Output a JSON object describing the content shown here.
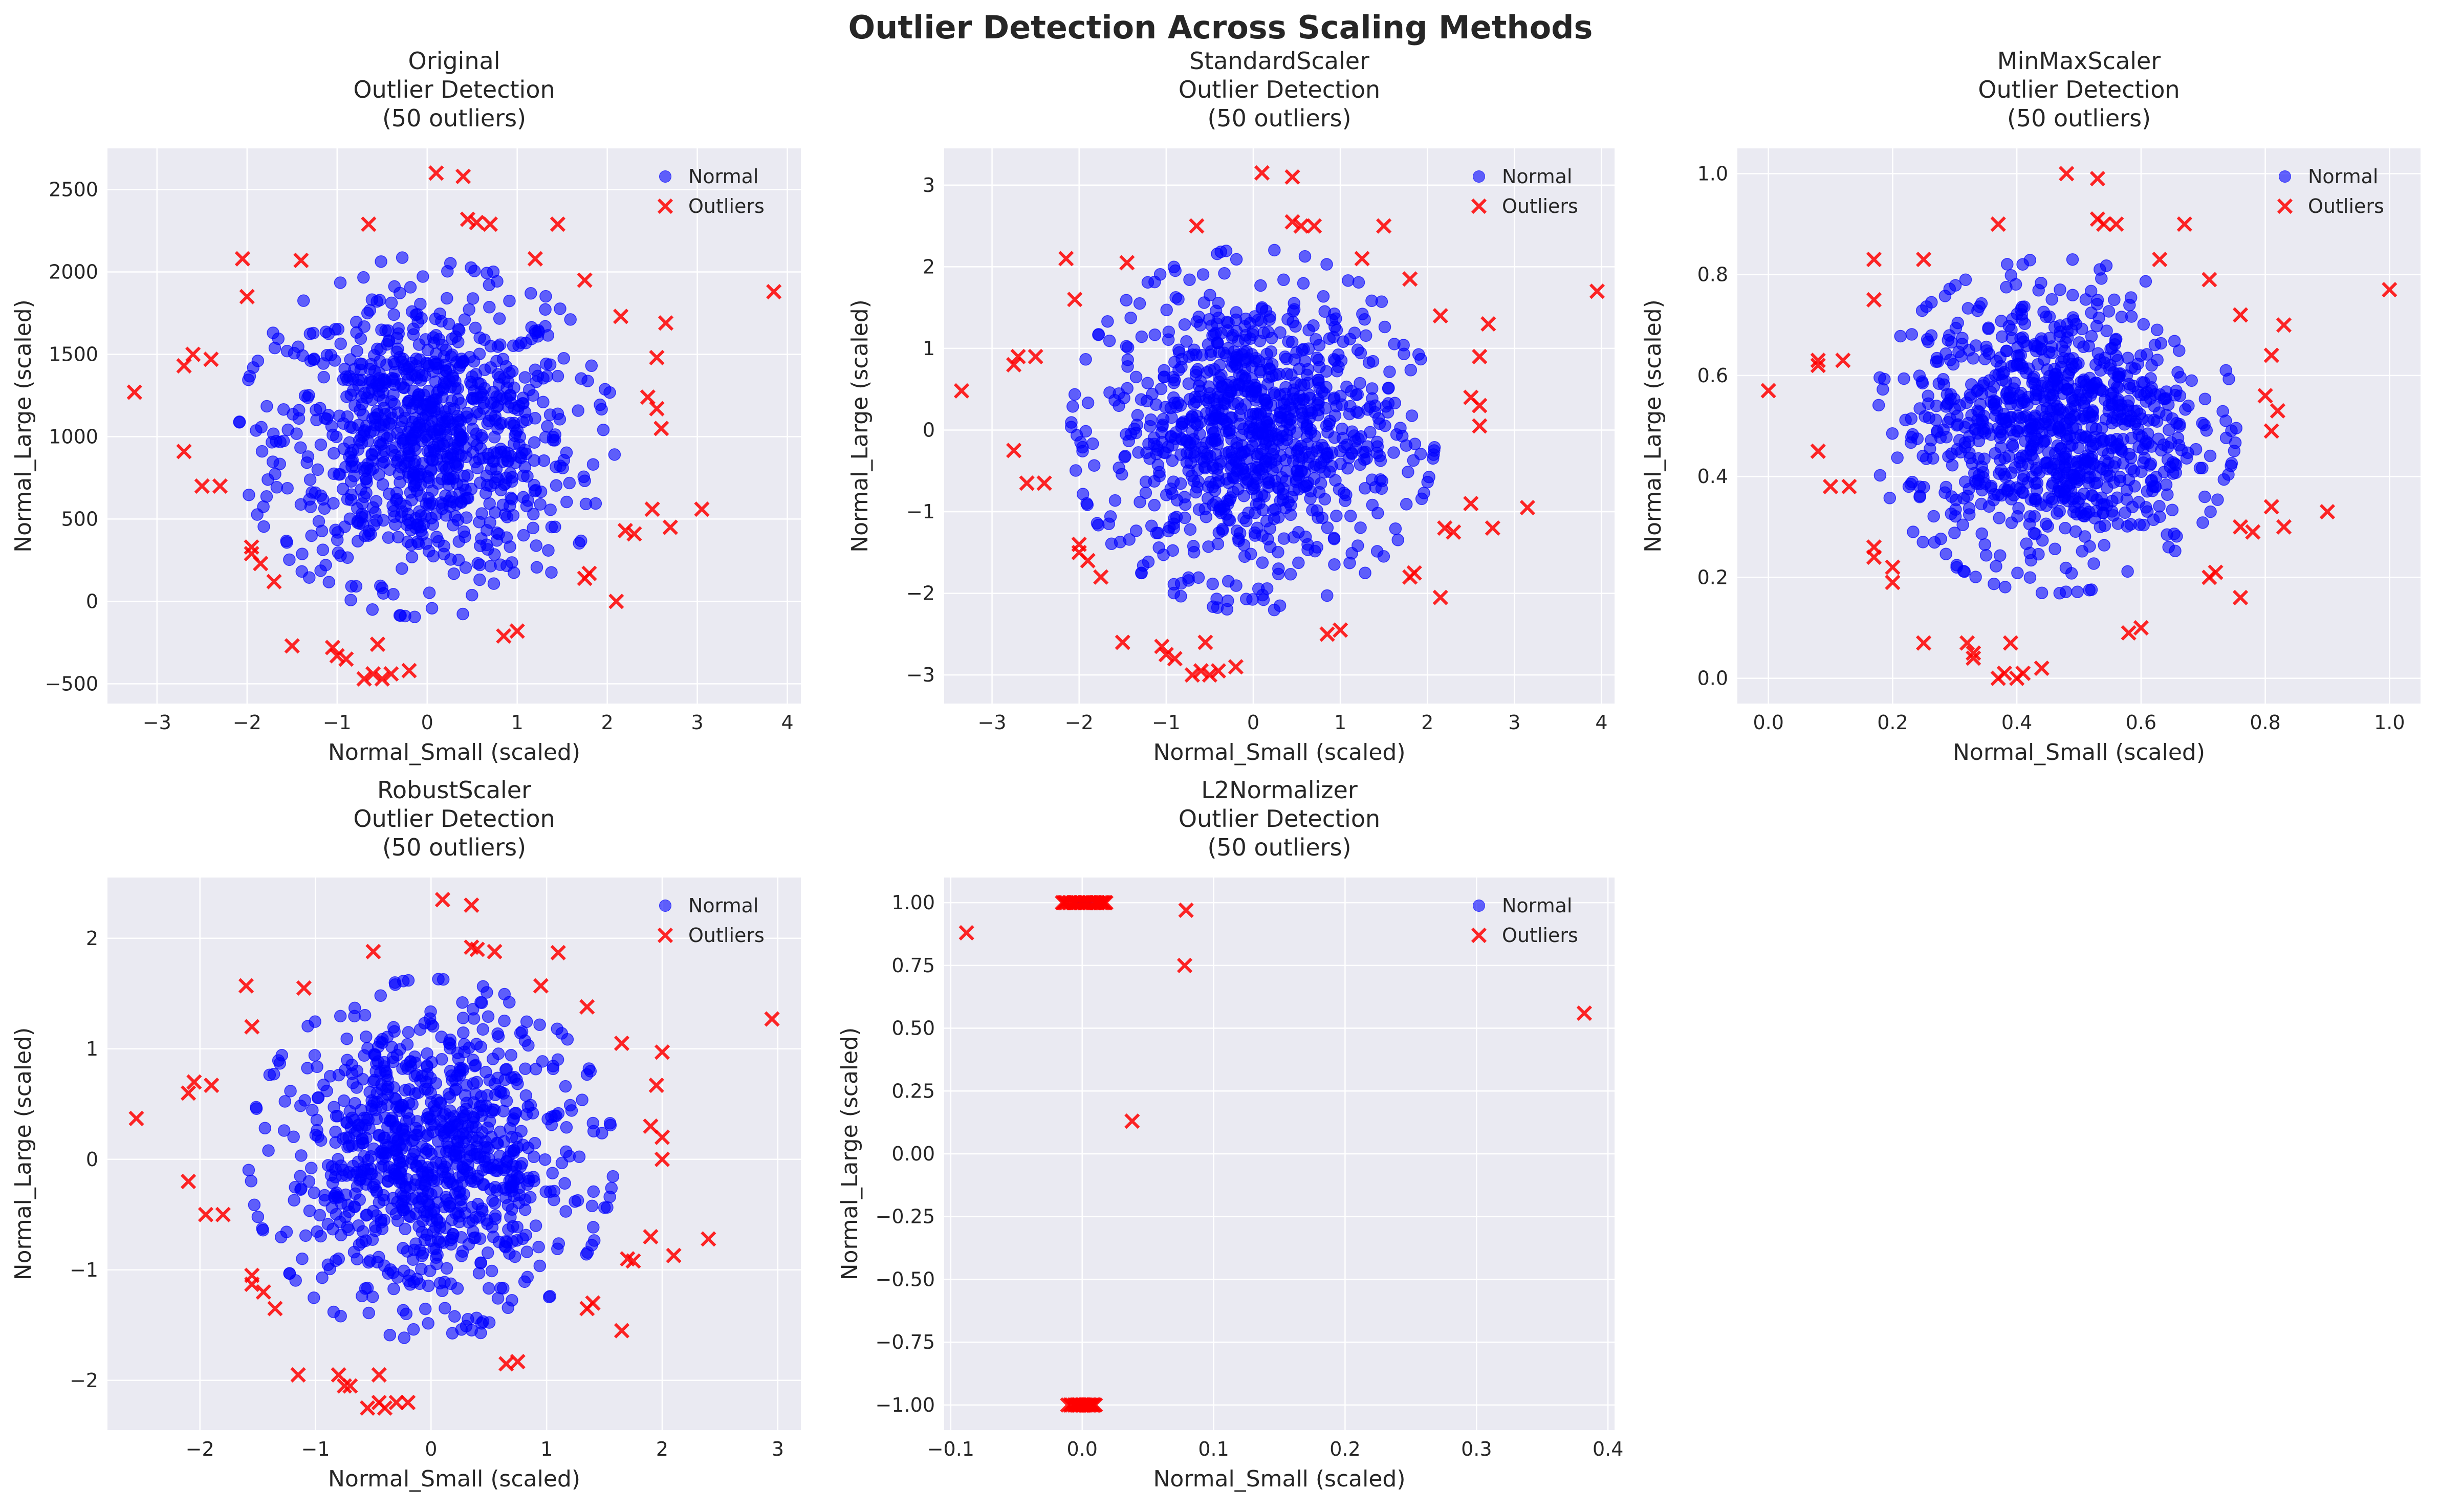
{
  "figure": {
    "title": "Outlier Detection Across Scaling Methods"
  },
  "legend": {
    "normal": "Normal",
    "outliers": "Outliers",
    "placement": "upper-right"
  },
  "colors": {
    "normal": "#0000ff",
    "outlier": "#ff0000",
    "axes_bg": "#eaeaf2",
    "grid": "#ffffff"
  },
  "chart_data": [
    {
      "type": "scatter",
      "title": [
        "Original",
        "Outlier Detection",
        "(50 outliers)"
      ],
      "xlabel": "Normal_Small (scaled)",
      "ylabel": "Normal_Large (scaled)",
      "xlim": [
        -3.55,
        4.15
      ],
      "ylim": [
        -620,
        2750
      ],
      "xticks": [
        -3,
        -2,
        -1,
        0,
        1,
        2,
        3,
        4
      ],
      "yticks": [
        -500,
        0,
        500,
        1000,
        1500,
        2000,
        2500
      ],
      "xtick_labels": [
        "−3",
        "−2",
        "−1",
        "0",
        "1",
        "2",
        "3",
        "4"
      ],
      "ytick_labels": [
        "−500",
        "0",
        "500",
        "1000",
        "1500",
        "2000",
        "2500"
      ],
      "normal": {
        "count": 950,
        "x_mean": 0.0,
        "x_sd": 0.82,
        "y_mean": 1000,
        "y_sd": 430
      },
      "outliers": [
        [
          -3.25,
          1270
        ],
        [
          -2.7,
          1430
        ],
        [
          -2.6,
          1500
        ],
        [
          -2.4,
          1470
        ],
        [
          -2.7,
          910
        ],
        [
          -2.5,
          700
        ],
        [
          -2.3,
          700
        ],
        [
          -2.05,
          2080
        ],
        [
          -2.0,
          1850
        ],
        [
          -1.95,
          330
        ],
        [
          -1.95,
          290
        ],
        [
          -1.85,
          230
        ],
        [
          -1.7,
          120
        ],
        [
          -1.5,
          -270
        ],
        [
          -1.4,
          2070
        ],
        [
          -1.05,
          -280
        ],
        [
          -1.0,
          -330
        ],
        [
          -0.9,
          -350
        ],
        [
          -0.7,
          -470
        ],
        [
          -0.6,
          -440
        ],
        [
          -0.5,
          -470
        ],
        [
          -0.4,
          -440
        ],
        [
          -0.55,
          -260
        ],
        [
          -0.2,
          -420
        ],
        [
          -0.65,
          2290
        ],
        [
          0.1,
          2600
        ],
        [
          0.4,
          2580
        ],
        [
          0.45,
          2320
        ],
        [
          0.55,
          2300
        ],
        [
          0.7,
          2290
        ],
        [
          1.2,
          2080
        ],
        [
          1.45,
          2290
        ],
        [
          1.75,
          1950
        ],
        [
          0.85,
          -210
        ],
        [
          1.0,
          -180
        ],
        [
          1.75,
          140
        ],
        [
          1.8,
          170
        ],
        [
          2.1,
          0
        ],
        [
          2.2,
          430
        ],
        [
          2.3,
          410
        ],
        [
          2.5,
          560
        ],
        [
          2.6,
          1050
        ],
        [
          2.55,
          1170
        ],
        [
          2.55,
          1480
        ],
        [
          2.45,
          1240
        ],
        [
          2.65,
          1690
        ],
        [
          2.15,
          1730
        ],
        [
          2.7,
          450
        ],
        [
          3.05,
          560
        ],
        [
          3.85,
          1880
        ]
      ]
    },
    {
      "type": "scatter",
      "title": [
        "StandardScaler",
        "Outlier Detection",
        "(50 outliers)"
      ],
      "xlabel": "Normal_Small (scaled)",
      "ylabel": "Normal_Large (scaled)",
      "xlim": [
        -3.55,
        4.15
      ],
      "ylim": [
        -3.35,
        3.45
      ],
      "xticks": [
        -3,
        -2,
        -1,
        0,
        1,
        2,
        3,
        4
      ],
      "yticks": [
        -3,
        -2,
        -1,
        0,
        1,
        2,
        3
      ],
      "xtick_labels": [
        "−3",
        "−2",
        "−1",
        "0",
        "1",
        "2",
        "3",
        "4"
      ],
      "ytick_labels": [
        "−3",
        "−2",
        "−1",
        "0",
        "1",
        "2",
        "3"
      ],
      "normal": {
        "count": 950,
        "x_mean": 0.0,
        "x_sd": 0.82,
        "y_mean": 0.0,
        "y_sd": 0.87
      },
      "outliers": [
        [
          -3.35,
          0.48
        ],
        [
          -2.75,
          0.8
        ],
        [
          -2.7,
          0.9
        ],
        [
          -2.5,
          0.9
        ],
        [
          -2.75,
          -0.25
        ],
        [
          -2.6,
          -0.65
        ],
        [
          -2.4,
          -0.65
        ],
        [
          -2.15,
          2.1
        ],
        [
          -2.05,
          1.6
        ],
        [
          -2.0,
          -1.4
        ],
        [
          -2.0,
          -1.5
        ],
        [
          -1.9,
          -1.6
        ],
        [
          -1.75,
          -1.8
        ],
        [
          -1.5,
          -2.6
        ],
        [
          -1.45,
          2.05
        ],
        [
          -1.05,
          -2.65
        ],
        [
          -1.0,
          -2.75
        ],
        [
          -0.9,
          -2.8
        ],
        [
          -0.7,
          -3.0
        ],
        [
          -0.6,
          -2.95
        ],
        [
          -0.5,
          -3.0
        ],
        [
          -0.4,
          -2.95
        ],
        [
          -0.55,
          -2.6
        ],
        [
          -0.2,
          -2.9
        ],
        [
          -0.65,
          2.5
        ],
        [
          0.1,
          3.15
        ],
        [
          0.45,
          3.1
        ],
        [
          0.45,
          2.55
        ],
        [
          0.55,
          2.5
        ],
        [
          0.7,
          2.5
        ],
        [
          1.25,
          2.1
        ],
        [
          1.5,
          2.5
        ],
        [
          1.8,
          1.85
        ],
        [
          0.85,
          -2.5
        ],
        [
          1.0,
          -2.45
        ],
        [
          1.8,
          -1.8
        ],
        [
          1.85,
          -1.75
        ],
        [
          2.15,
          -2.05
        ],
        [
          2.2,
          -1.2
        ],
        [
          2.3,
          -1.25
        ],
        [
          2.5,
          -0.9
        ],
        [
          2.6,
          0.05
        ],
        [
          2.6,
          0.3
        ],
        [
          2.6,
          0.9
        ],
        [
          2.5,
          0.4
        ],
        [
          2.7,
          1.3
        ],
        [
          2.15,
          1.4
        ],
        [
          2.75,
          -1.2
        ],
        [
          3.15,
          -0.95
        ],
        [
          3.95,
          1.7
        ]
      ]
    },
    {
      "type": "scatter",
      "title": [
        "MinMaxScaler",
        "Outlier Detection",
        "(50 outliers)"
      ],
      "xlabel": "Normal_Small (scaled)",
      "ylabel": "Normal_Large (scaled)",
      "xlim": [
        -0.05,
        1.05
      ],
      "ylim": [
        -0.05,
        1.05
      ],
      "xticks": [
        0.0,
        0.2,
        0.4,
        0.6,
        0.8,
        1.0
      ],
      "yticks": [
        0.0,
        0.2,
        0.4,
        0.6,
        0.8,
        1.0
      ],
      "xtick_labels": [
        "0.0",
        "0.2",
        "0.4",
        "0.6",
        "0.8",
        "1.0"
      ],
      "ytick_labels": [
        "0.0",
        "0.2",
        "0.4",
        "0.6",
        "0.8",
        "1.0"
      ],
      "normal": {
        "count": 950,
        "x_mean": 0.46,
        "x_sd": 0.115,
        "y_mean": 0.5,
        "y_sd": 0.13
      },
      "outliers": [
        [
          0.0,
          0.57
        ],
        [
          0.08,
          0.63
        ],
        [
          0.08,
          0.62
        ],
        [
          0.12,
          0.63
        ],
        [
          0.08,
          0.45
        ],
        [
          0.1,
          0.38
        ],
        [
          0.13,
          0.38
        ],
        [
          0.17,
          0.83
        ],
        [
          0.17,
          0.75
        ],
        [
          0.17,
          0.26
        ],
        [
          0.17,
          0.24
        ],
        [
          0.2,
          0.22
        ],
        [
          0.2,
          0.19
        ],
        [
          0.25,
          0.07
        ],
        [
          0.25,
          0.83
        ],
        [
          0.32,
          0.07
        ],
        [
          0.33,
          0.05
        ],
        [
          0.33,
          0.04
        ],
        [
          0.37,
          0.0
        ],
        [
          0.38,
          0.01
        ],
        [
          0.4,
          0.0
        ],
        [
          0.41,
          0.01
        ],
        [
          0.39,
          0.07
        ],
        [
          0.44,
          0.02
        ],
        [
          0.37,
          0.9
        ],
        [
          0.48,
          1.0
        ],
        [
          0.53,
          0.99
        ],
        [
          0.53,
          0.91
        ],
        [
          0.54,
          0.9
        ],
        [
          0.56,
          0.9
        ],
        [
          0.63,
          0.83
        ],
        [
          0.67,
          0.9
        ],
        [
          0.71,
          0.79
        ],
        [
          0.58,
          0.09
        ],
        [
          0.6,
          0.1
        ],
        [
          0.71,
          0.2
        ],
        [
          0.72,
          0.21
        ],
        [
          0.76,
          0.16
        ],
        [
          0.76,
          0.3
        ],
        [
          0.78,
          0.29
        ],
        [
          0.81,
          0.34
        ],
        [
          0.81,
          0.49
        ],
        [
          0.82,
          0.53
        ],
        [
          0.81,
          0.64
        ],
        [
          0.8,
          0.56
        ],
        [
          0.83,
          0.7
        ],
        [
          0.76,
          0.72
        ],
        [
          0.83,
          0.3
        ],
        [
          0.9,
          0.33
        ],
        [
          1.0,
          0.77
        ]
      ]
    },
    {
      "type": "scatter",
      "title": [
        "RobustScaler",
        "Outlier Detection",
        "(50 outliers)"
      ],
      "xlabel": "Normal_Small (scaled)",
      "ylabel": "Normal_Large (scaled)",
      "xlim": [
        -2.8,
        3.2
      ],
      "ylim": [
        -2.45,
        2.55
      ],
      "xticks": [
        -2,
        -1,
        0,
        1,
        2,
        3
      ],
      "yticks": [
        -2,
        -1,
        0,
        1,
        2
      ],
      "xtick_labels": [
        "−2",
        "−1",
        "0",
        "1",
        "2",
        "3"
      ],
      "ytick_labels": [
        "−2",
        "−1",
        "0",
        "1",
        "2"
      ],
      "normal": {
        "count": 950,
        "x_mean": 0.0,
        "x_sd": 0.62,
        "y_mean": 0.0,
        "y_sd": 0.64
      },
      "outliers": [
        [
          -2.55,
          0.37
        ],
        [
          -2.1,
          0.6
        ],
        [
          -2.05,
          0.7
        ],
        [
          -1.9,
          0.67
        ],
        [
          -2.1,
          -0.2
        ],
        [
          -1.95,
          -0.5
        ],
        [
          -1.8,
          -0.5
        ],
        [
          -1.6,
          1.57
        ],
        [
          -1.55,
          1.2
        ],
        [
          -1.55,
          -1.05
        ],
        [
          -1.55,
          -1.13
        ],
        [
          -1.45,
          -1.2
        ],
        [
          -1.35,
          -1.35
        ],
        [
          -1.15,
          -1.95
        ],
        [
          -1.1,
          1.55
        ],
        [
          -0.8,
          -1.95
        ],
        [
          -0.75,
          -2.05
        ],
        [
          -0.7,
          -2.05
        ],
        [
          -0.55,
          -2.25
        ],
        [
          -0.45,
          -2.2
        ],
        [
          -0.4,
          -2.25
        ],
        [
          -0.3,
          -2.2
        ],
        [
          -0.45,
          -1.95
        ],
        [
          -0.2,
          -2.2
        ],
        [
          -0.5,
          1.88
        ],
        [
          0.1,
          2.35
        ],
        [
          0.35,
          2.3
        ],
        [
          0.35,
          1.92
        ],
        [
          0.4,
          1.9
        ],
        [
          0.55,
          1.88
        ],
        [
          0.95,
          1.57
        ],
        [
          1.1,
          1.87
        ],
        [
          1.35,
          1.38
        ],
        [
          0.65,
          -1.85
        ],
        [
          0.75,
          -1.83
        ],
        [
          1.35,
          -1.35
        ],
        [
          1.4,
          -1.3
        ],
        [
          1.65,
          -1.55
        ],
        [
          1.7,
          -0.9
        ],
        [
          1.75,
          -0.92
        ],
        [
          1.9,
          -0.7
        ],
        [
          2.0,
          0.0
        ],
        [
          2.0,
          0.2
        ],
        [
          1.95,
          0.67
        ],
        [
          1.9,
          0.3
        ],
        [
          2.0,
          0.97
        ],
        [
          1.65,
          1.05
        ],
        [
          2.1,
          -0.87
        ],
        [
          2.4,
          -0.72
        ],
        [
          2.95,
          1.27
        ]
      ]
    },
    {
      "type": "scatter",
      "title": [
        "L2Normalizer",
        "Outlier Detection",
        "(50 outliers)"
      ],
      "xlabel": "Normal_Small (scaled)",
      "ylabel": "Normal_Large (scaled)",
      "xlim": [
        -0.105,
        0.405
      ],
      "ylim": [
        -1.1,
        1.1
      ],
      "xticks": [
        -0.1,
        0.0,
        0.1,
        0.2,
        0.3,
        0.4
      ],
      "yticks": [
        -1.0,
        -0.75,
        -0.5,
        -0.25,
        0.0,
        0.25,
        0.5,
        0.75,
        1.0
      ],
      "xtick_labels": [
        "−0.1",
        "0.0",
        "0.1",
        "0.2",
        "0.3",
        "0.4"
      ],
      "ytick_labels": [
        "−1.00",
        "−0.75",
        "−0.50",
        "−0.25",
        "0.00",
        "0.25",
        "0.50",
        "0.75",
        "1.00"
      ],
      "normal_points": [
        [
          -0.003,
          1.0
        ],
        [
          0.0,
          1.0
        ],
        [
          0.002,
          1.0
        ],
        [
          0.004,
          1.0
        ],
        [
          -0.002,
          1.0
        ],
        [
          0.001,
          1.0
        ],
        [
          0.003,
          1.0
        ],
        [
          -0.001,
          -1.0
        ],
        [
          0.001,
          -1.0
        ],
        [
          0.0,
          -1.0
        ],
        [
          0.002,
          -1.0
        ],
        [
          -0.002,
          -1.0
        ]
      ],
      "outliers": [
        [
          -0.088,
          0.88
        ],
        [
          -0.015,
          1.0
        ],
        [
          -0.012,
          1.0
        ],
        [
          -0.009,
          1.0
        ],
        [
          -0.006,
          1.0
        ],
        [
          -0.003,
          1.0
        ],
        [
          0.0,
          1.0
        ],
        [
          0.003,
          1.0
        ],
        [
          0.006,
          1.0
        ],
        [
          0.009,
          1.0
        ],
        [
          0.012,
          1.0
        ],
        [
          0.015,
          1.0
        ],
        [
          0.018,
          1.0
        ],
        [
          -0.01,
          1.0
        ],
        [
          0.01,
          1.0
        ],
        [
          0.005,
          1.0
        ],
        [
          -0.005,
          1.0
        ],
        [
          0.014,
          1.0
        ],
        [
          0.017,
          1.0
        ],
        [
          -0.013,
          1.0
        ],
        [
          -0.011,
          -1.0
        ],
        [
          -0.008,
          -1.0
        ],
        [
          -0.005,
          -1.0
        ],
        [
          -0.002,
          -1.0
        ],
        [
          0.001,
          -1.0
        ],
        [
          0.004,
          -1.0
        ],
        [
          0.007,
          -1.0
        ],
        [
          0.01,
          -1.0
        ],
        [
          -0.006,
          -1.0
        ],
        [
          0.003,
          -1.0
        ],
        [
          0.006,
          -1.0
        ],
        [
          -0.009,
          -1.0
        ],
        [
          0.008,
          -1.0
        ],
        [
          0.0,
          -1.0
        ],
        [
          0.079,
          0.97
        ],
        [
          0.078,
          0.75
        ],
        [
          0.038,
          0.13
        ],
        [
          0.382,
          0.56
        ],
        [
          -0.004,
          -1.0
        ],
        [
          0.002,
          -1.0
        ],
        [
          0.011,
          1.0
        ],
        [
          -0.007,
          1.0
        ],
        [
          0.016,
          1.0
        ],
        [
          0.002,
          1.0
        ],
        [
          -0.014,
          1.0
        ],
        [
          0.009,
          -1.0
        ],
        [
          -0.003,
          -1.0
        ],
        [
          0.005,
          -1.0
        ],
        [
          0.012,
          1.0
        ],
        [
          -0.001,
          1.0
        ]
      ]
    }
  ]
}
